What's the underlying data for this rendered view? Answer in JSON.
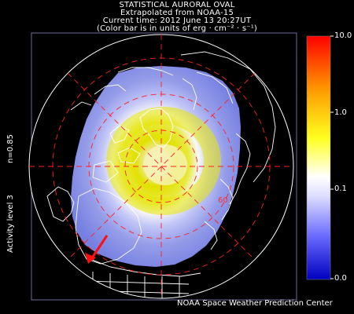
{
  "title": {
    "line1": "STATISTICAL AURORAL OVAL",
    "line2": "Extrapolated from NOAA-15",
    "line3": "Current time: 2012 June 13 20:27UT",
    "line4": "(Color bar is in units of erg · cm⁻² · s⁻¹)"
  },
  "left_labels": {
    "n_value": "n=0.85",
    "activity": "Activity level 3"
  },
  "colorbar": {
    "ticks": [
      "10.0",
      "1.0",
      "0.1",
      "0.0"
    ],
    "colors": [
      "#ff0000",
      "#ff8a00",
      "#ffff00",
      "#ffffff",
      "#8f8fff",
      "#0000ff"
    ]
  },
  "map": {
    "latitude_label": "60",
    "grid_color": "#ff2020",
    "coast_color": "#ffffff",
    "oval_colors": [
      "#e8e800",
      "#ffffff",
      "#b0b8ff",
      "#7a84e8"
    ]
  },
  "credit": "NOAA Space Weather Prediction Center"
}
